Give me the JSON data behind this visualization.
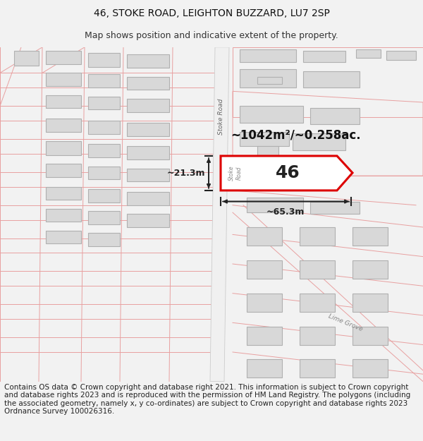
{
  "title": "46, STOKE ROAD, LEIGHTON BUZZARD, LU7 2SP",
  "subtitle": "Map shows position and indicative extent of the property.",
  "area_label": "~1042m²/~0.258ac.",
  "plot_number": "46",
  "dim_width": "~65.3m",
  "dim_height": "~21.3m",
  "road_label": "Stoke Road",
  "lime_grove_label": "Lime Grove",
  "footer": "Contains OS data © Crown copyright and database right 2021. This information is subject to Crown copyright and database rights 2023 and is reproduced with the permission of HM Land Registry. The polygons (including the associated geometry, namely x, y co-ordinates) are subject to Crown copyright and database rights 2023 Ordnance Survey 100026316.",
  "bg_color": "#f2f2f2",
  "map_bg": "#ffffff",
  "plot_fill": "#ffffff",
  "plot_edge": "#dd0000",
  "road_line_color": "#e8a0a0",
  "road_fill_color": "#f0c8c8",
  "building_fill": "#d8d8d8",
  "building_edge": "#b0b0b0",
  "dim_color": "#222222",
  "title_fontsize": 10,
  "subtitle_fontsize": 9,
  "footer_fontsize": 7.5,
  "map_line_lw": 0.7
}
